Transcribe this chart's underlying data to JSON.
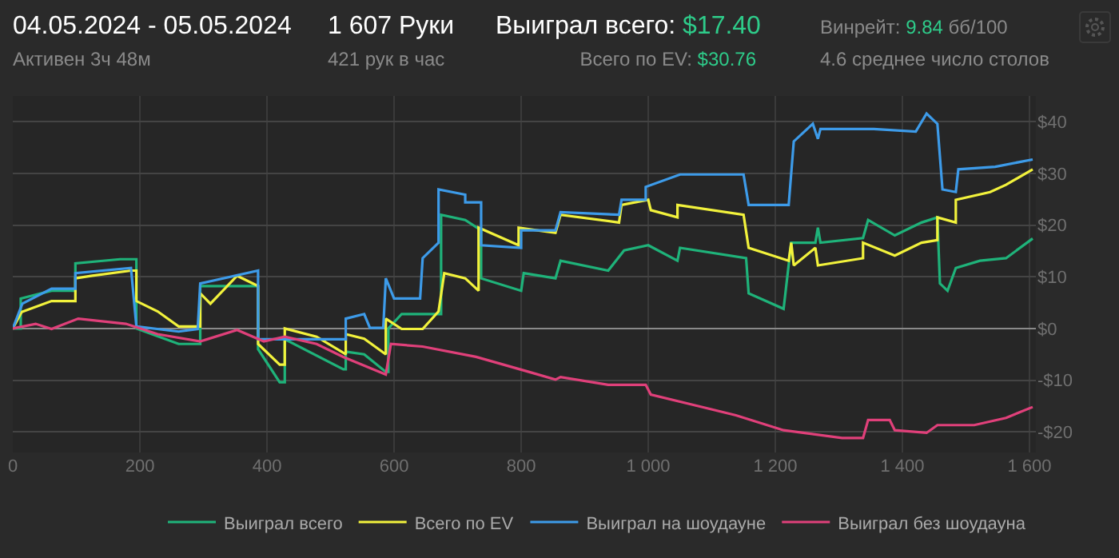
{
  "chart_data": {
    "type": "line",
    "title": "04.05.2024 - 05.05.2024",
    "subtitle": "Активен 3ч 48м",
    "annotations": [
      "1 607 Руки",
      "421 рук в час",
      "Выиграл всего: $17.40",
      "Всего по EV: $30.76",
      "Винрейт: 9.84 бб/100",
      "4.6 среднее число столов"
    ],
    "series": [
      {
        "name": "Выиграл всего",
        "color": "#1fb37a",
        "x": [
          0,
          12.5,
          12.5,
          61,
          98.5,
          98.5,
          169,
          194.5,
          194.5,
          261,
          295,
          295,
          386,
          386,
          420,
          428,
          428,
          520,
          524,
          524,
          553,
          587,
          591,
          591,
          612,
          645,
          674,
          674,
          712,
          737,
          737,
          800,
          804,
          854,
          862,
          937,
          962,
          1000,
          1046,
          1050,
          1154,
          1158,
          1213,
          1225,
          1263,
          1267,
          1271,
          1338,
          1346,
          1388,
          1430,
          1455,
          1459,
          1471,
          1484,
          1522,
          1563,
          1605
        ],
        "values": [
          0,
          0,
          5.8,
          7.3,
          7.3,
          12.6,
          13.4,
          13.4,
          0,
          -3,
          -3,
          8.2,
          8.2,
          -4,
          -10.4,
          -10.4,
          -2.1,
          -7.9,
          -7.9,
          -4.5,
          -5,
          -8.4,
          -8.4,
          0,
          2.8,
          2.8,
          2.8,
          22,
          21,
          19,
          9.7,
          7.3,
          10.7,
          9.7,
          13.1,
          11.2,
          15.1,
          16.1,
          13.1,
          15.6,
          13.6,
          6.8,
          3.8,
          16.6,
          16.6,
          19.5,
          16.6,
          17.5,
          21,
          18,
          20.5,
          21.5,
          8.7,
          7.3,
          11.7,
          13.1,
          13.6,
          17.4
        ]
      },
      {
        "name": "Всего по EV",
        "color": "#f2f23c",
        "x": [
          0,
          14,
          61,
          98.5,
          98.5,
          125,
          186,
          194.5,
          194.5,
          228,
          261,
          295,
          295,
          311,
          353,
          386,
          386,
          420,
          428,
          428,
          478,
          524,
          524,
          553,
          587,
          587,
          612,
          645,
          670,
          679,
          712,
          733,
          733,
          796,
          796,
          854,
          862,
          954,
          958,
          1000,
          1004,
          1046,
          1046,
          1150,
          1158,
          1221,
          1225,
          1229,
          1263,
          1267,
          1338,
          1338,
          1388,
          1430,
          1455,
          1455,
          1484,
          1484,
          1538,
          1563,
          1605
        ],
        "values": [
          0,
          3.2,
          5.3,
          5.3,
          9.7,
          10.2,
          11.2,
          11.2,
          5.3,
          3.3,
          0.4,
          0.4,
          6.8,
          4.8,
          10.2,
          8.2,
          -3,
          -7,
          -7,
          0,
          -1.6,
          -5,
          -1.1,
          -2,
          -5,
          1.9,
          -0.1,
          -0.1,
          3.3,
          10.7,
          9.7,
          7.3,
          19.5,
          16.1,
          19.5,
          18.5,
          22,
          20.5,
          23.9,
          24.9,
          22.9,
          21.5,
          23.9,
          22,
          15.6,
          13.1,
          16.6,
          12.2,
          15.6,
          12.2,
          13.6,
          16.6,
          14.1,
          16.6,
          17.1,
          21.5,
          20.5,
          24.9,
          26.4,
          27.8,
          30.8
        ]
      },
      {
        "name": "Выиграл на шоудауне",
        "color": "#3d9be9",
        "x": [
          0,
          15,
          61,
          98.5,
          98.5,
          186,
          194.5,
          261,
          291,
          295,
          386,
          386,
          524,
          524,
          553,
          562,
          583,
          587,
          600,
          641,
          645,
          670,
          670,
          712,
          712,
          737,
          737,
          800,
          800,
          854,
          862,
          954,
          958,
          996,
          996,
          1050,
          1150,
          1158,
          1221,
          1229,
          1259,
          1267,
          1271,
          1355,
          1421,
          1438,
          1455,
          1463,
          1484,
          1488,
          1546,
          1605
        ],
        "values": [
          0,
          4.8,
          7.7,
          7.7,
          10.7,
          11.7,
          0.4,
          -0.6,
          -0.1,
          8.7,
          11.2,
          -2.1,
          -2.1,
          1.9,
          2.8,
          0.1,
          0.1,
          9.7,
          5.8,
          5.8,
          13.6,
          16.6,
          26.9,
          25.9,
          24.4,
          24.4,
          16.1,
          15.6,
          19,
          19,
          22.5,
          22,
          24.9,
          24.9,
          27.4,
          29.8,
          29.8,
          23.9,
          23.9,
          36.2,
          39.6,
          36.7,
          38.6,
          38.6,
          38.1,
          41.6,
          39.6,
          26.9,
          26.4,
          30.8,
          31.3,
          32.7
        ]
      },
      {
        "name": "Выиграл без шоудауна",
        "color": "#e0407a",
        "x": [
          0,
          36,
          61,
          103,
          178,
          228,
          295,
          353,
          395,
          428,
          478,
          520,
          587,
          595,
          645,
          729,
          812,
          854,
          862,
          937,
          996,
          1004,
          1071,
          1138,
          1213,
          1305,
          1338,
          1346,
          1380,
          1388,
          1438,
          1455,
          1513,
          1563,
          1605
        ],
        "values": [
          0,
          0.9,
          -0.1,
          1.9,
          0.9,
          -1.1,
          -2.5,
          -0.3,
          -2.5,
          -1.6,
          -3,
          -5.5,
          -8.9,
          -3,
          -3.5,
          -5.5,
          -8.4,
          -9.9,
          -9.4,
          -10.9,
          -10.9,
          -12.8,
          -14.8,
          -16.8,
          -19.7,
          -21.2,
          -21.2,
          -17.7,
          -17.7,
          -19.7,
          -20.2,
          -18.7,
          -18.7,
          -17.3,
          -15.2
        ]
      }
    ],
    "xlim": [
      0,
      1610
    ],
    "ylim": [
      -24,
      45
    ],
    "xticks": [
      0,
      200,
      400,
      600,
      800,
      {
        "value": 1000,
        "label": "1 000"
      },
      {
        "value": 1200,
        "label": "1 200"
      },
      {
        "value": 1400,
        "label": "1 400"
      },
      {
        "value": 1600,
        "label": "1 600"
      }
    ],
    "yticks": [
      {
        "value": -20,
        "label": "-$20"
      },
      {
        "value": -10,
        "label": "-$10"
      },
      {
        "value": 0,
        "label": "$0"
      },
      {
        "value": 10,
        "label": "$10"
      },
      {
        "value": 20,
        "label": "$20"
      },
      {
        "value": 30,
        "label": "$30"
      },
      {
        "value": 40,
        "label": "$40"
      }
    ],
    "grid": true,
    "legend": "bottom right",
    "marker": "none",
    "line_style": "solid"
  }
}
